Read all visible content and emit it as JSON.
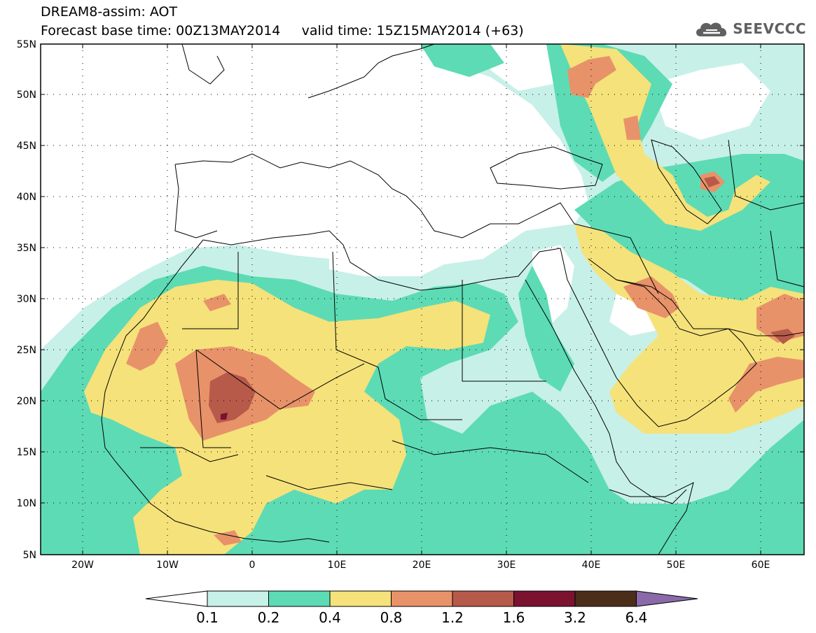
{
  "header": {
    "title_line1": "DREAM8-assim: AOT",
    "title_line2": "Forecast base time: 00Z13MAY2014     valid time: 15Z15MAY2014 (+63)",
    "logo_text": "SEEVCCC"
  },
  "map": {
    "projection": "lat-lon",
    "lon_range": [
      -25,
      65
    ],
    "lat_range": [
      5,
      55
    ],
    "lat_ticks": [
      "55N",
      "50N",
      "45N",
      "40N",
      "35N",
      "30N",
      "25N",
      "20N",
      "15N",
      "10N",
      "5N"
    ],
    "lon_ticks": [
      "20W",
      "10W",
      "0",
      "10E",
      "20E",
      "30E",
      "40E",
      "50E",
      "60E"
    ],
    "lat_values": [
      55,
      50,
      45,
      40,
      35,
      30,
      25,
      20,
      15,
      10,
      5
    ],
    "lon_values": [
      -20,
      -10,
      0,
      10,
      20,
      30,
      40,
      50,
      60
    ],
    "grid": "dotted"
  },
  "colorbar": {
    "labels": [
      "0.1",
      "0.2",
      "0.4",
      "0.8",
      "1.2",
      "1.6",
      "3.2",
      "6.4"
    ],
    "colors": [
      "#c7f0e8",
      "#5ddbb4",
      "#f5e27a",
      "#e8926a",
      "#b85a4a",
      "#7a1230",
      "#4a2e1a"
    ],
    "extend_low_color": "#ffffff",
    "extend_high_color": "#8a6aa8"
  }
}
